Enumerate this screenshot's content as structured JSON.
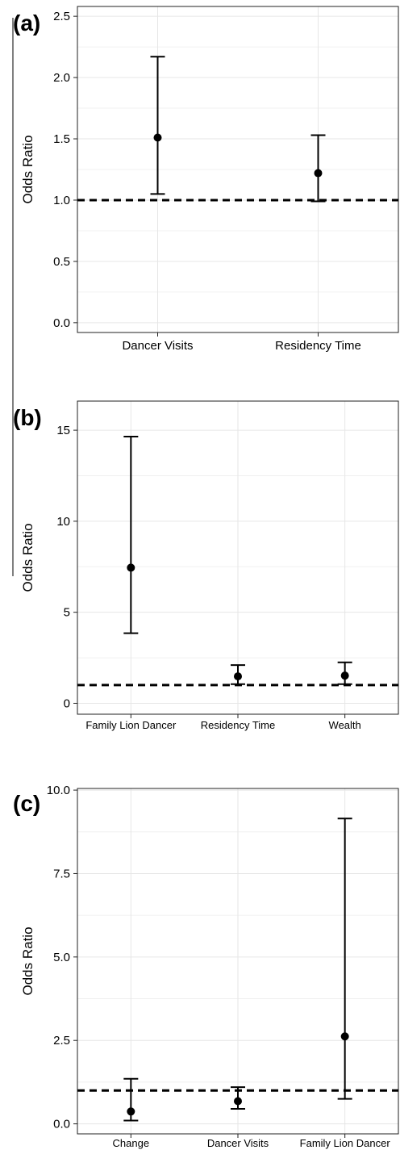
{
  "chart_data": [
    {
      "type": "scatter",
      "panel": "(a)",
      "ylabel": "Odds Ratio",
      "xlabel": "",
      "ylim": [
        -0.08,
        2.58
      ],
      "yticks": [
        0.0,
        0.5,
        1.0,
        1.5,
        2.0,
        2.5
      ],
      "ytick_labels": [
        "0.0",
        "0.5",
        "1.0",
        "1.5",
        "2.0",
        "2.5"
      ],
      "categories": [
        "Dancer Visits",
        "Residency Time"
      ],
      "values": [
        1.51,
        1.22
      ],
      "lower": [
        1.05,
        0.99
      ],
      "upper": [
        2.17,
        1.53
      ],
      "reference_line": 1.0,
      "grid": true
    },
    {
      "type": "scatter",
      "panel": "(b)",
      "ylabel": "Odds Ratio",
      "xlabel": "",
      "ylim": [
        -0.6,
        16.6
      ],
      "yticks": [
        0,
        5,
        10,
        15
      ],
      "ytick_labels": [
        "0",
        "5",
        "10",
        "15"
      ],
      "categories": [
        "Family Lion Dancer",
        "Residency Time",
        "Wealth"
      ],
      "values": [
        7.45,
        1.48,
        1.52
      ],
      "lower": [
        3.85,
        1.05,
        1.05
      ],
      "upper": [
        14.65,
        2.1,
        2.25
      ],
      "reference_line": 1.0,
      "grid": true
    },
    {
      "type": "scatter",
      "panel": "(c)",
      "ylabel": "Odds Ratio",
      "xlabel": "",
      "ylim": [
        -0.3,
        10.05
      ],
      "yticks": [
        0.0,
        2.5,
        5.0,
        7.5,
        10.0
      ],
      "ytick_labels": [
        "0.0",
        "2.5",
        "5.0",
        "7.5",
        "10.0"
      ],
      "categories": [
        "Change",
        "Dancer Visits",
        "Family Lion Dancer"
      ],
      "values": [
        0.37,
        0.68,
        2.62
      ],
      "lower": [
        0.1,
        0.45,
        0.75
      ],
      "upper": [
        1.35,
        1.1,
        9.15
      ],
      "reference_line": 1.0,
      "grid": true
    }
  ]
}
